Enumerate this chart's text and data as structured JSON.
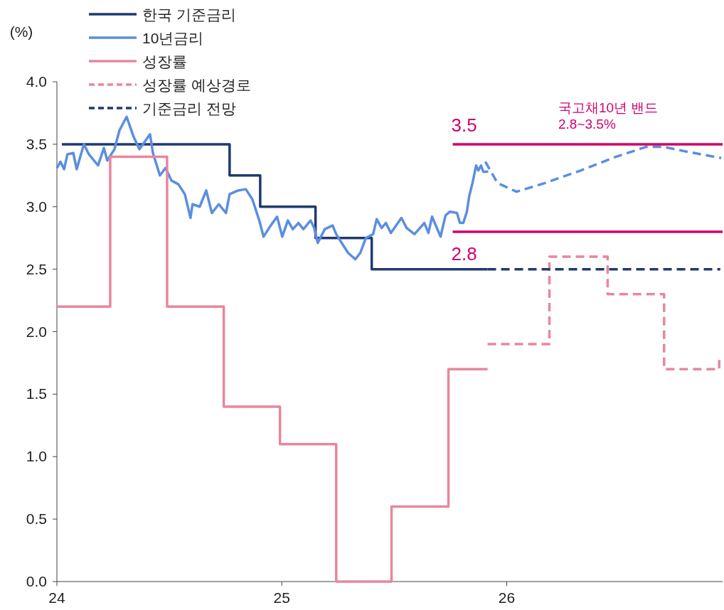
{
  "chart_data": {
    "type": "line",
    "ylabel": "(%)",
    "xlim": [
      24,
      26.96
    ],
    "ylim": [
      0,
      4
    ],
    "xticks": [
      24,
      25,
      26
    ],
    "yticks": [
      {
        "value": 0,
        "label": "0.0"
      },
      {
        "value": 0.5,
        "label": "0.5"
      },
      {
        "value": 1,
        "label": "1.0"
      },
      {
        "value": 1.5,
        "label": "1.5"
      },
      {
        "value": 2,
        "label": "2.0"
      },
      {
        "value": 2.5,
        "label": "2.5"
      },
      {
        "value": 3,
        "label": "3.0"
      },
      {
        "value": 3.5,
        "label": "3.5"
      },
      {
        "value": 4,
        "label": "4.0"
      }
    ],
    "grid": false,
    "legend": "top left",
    "marker": "none",
    "series": [
      {
        "name": "한국 기준금리",
        "type": "step",
        "color": "#1f3a6e",
        "line_style": "solid",
        "x": [
          24.022,
          24.768,
          24.904,
          25.15,
          25.4,
          25.915
        ],
        "values": [
          3.5,
          3.25,
          3.0,
          2.75,
          2.5,
          2.5
        ]
      },
      {
        "name": "10년금리",
        "color": "#5b8ee0",
        "line_style": "solid",
        "x": [
          24,
          24.016,
          24.032,
          24.047,
          24.073,
          24.088,
          24.12,
          24.142,
          24.183,
          24.209,
          24.224,
          24.256,
          24.278,
          24.31,
          24.341,
          24.367,
          24.414,
          24.427,
          24.458,
          24.483,
          24.509,
          24.54,
          24.569,
          24.594,
          24.603,
          24.635,
          24.664,
          24.689,
          24.72,
          24.752,
          24.768,
          24.806,
          24.84,
          24.869,
          24.9,
          24.919,
          24.951,
          24.979,
          25.002,
          25.027,
          25.049,
          25.074,
          25.096,
          25.128,
          25.144,
          25.16,
          25.191,
          25.226,
          25.242,
          25.27,
          25.295,
          25.327,
          25.349,
          25.374,
          25.406,
          25.422,
          25.444,
          25.463,
          25.485,
          25.532,
          25.555,
          25.59,
          25.634,
          25.652,
          25.668,
          25.706,
          25.728,
          25.747,
          25.779,
          25.792,
          25.807,
          25.823,
          25.833,
          25.848,
          25.864,
          25.874,
          25.886,
          25.896,
          25.918
        ],
        "values": [
          3.31,
          3.36,
          3.3,
          3.42,
          3.43,
          3.3,
          3.5,
          3.42,
          3.33,
          3.47,
          3.37,
          3.46,
          3.61,
          3.72,
          3.56,
          3.46,
          3.58,
          3.43,
          3.25,
          3.31,
          3.21,
          3.18,
          3.1,
          2.91,
          3.02,
          3.0,
          3.13,
          2.95,
          3.02,
          2.95,
          3.1,
          3.13,
          3.14,
          3.06,
          2.89,
          2.76,
          2.85,
          2.92,
          2.76,
          2.89,
          2.82,
          2.87,
          2.82,
          2.89,
          2.83,
          2.71,
          2.82,
          2.85,
          2.78,
          2.7,
          2.63,
          2.58,
          2.63,
          2.75,
          2.78,
          2.9,
          2.83,
          2.87,
          2.79,
          2.91,
          2.83,
          2.78,
          2.87,
          2.79,
          2.92,
          2.76,
          2.93,
          2.96,
          2.95,
          2.87,
          2.87,
          2.96,
          3.08,
          3.19,
          3.33,
          3.29,
          3.33,
          3.28,
          3.28
        ]
      },
      {
        "name": "성장률",
        "type": "step",
        "color": "#e8879c",
        "line_style": "solid",
        "x": [
          24,
          24.237,
          24.49,
          24.742,
          24.992,
          25.242,
          25.488,
          25.741,
          25.915
        ],
        "values": [
          2.2,
          3.4,
          2.2,
          1.4,
          1.1,
          0,
          0.6,
          1.7,
          1.7
        ]
      },
      {
        "name": "성장률 예상경로",
        "type": "step",
        "color": "#e8879c",
        "line_style": "dashed",
        "x": [
          25.915,
          26.19,
          26.449,
          26.7,
          26.945
        ],
        "values": [
          1.9,
          2.6,
          2.3,
          1.7,
          1.8
        ]
      },
      {
        "name": "기준금리 전망",
        "type": "step",
        "color": "#1f3a6e",
        "line_style": "dashed",
        "x": [
          25.915,
          26.95
        ],
        "values": [
          2.5,
          2.5
        ]
      },
      {
        "color": "#5b8ee0",
        "line_style": "dashed",
        "x": [
          25.905,
          25.959,
          26.044,
          26.171,
          26.329,
          26.487,
          26.622,
          26.695,
          26.803,
          26.954
        ],
        "values": [
          3.36,
          3.19,
          3.12,
          3.19,
          3.29,
          3.4,
          3.48,
          3.48,
          3.44,
          3.39
        ]
      },
      {
        "color": "#d1006a",
        "line_style": "solid",
        "x": [
          25.76,
          26.96
        ],
        "values": [
          3.5,
          3.5
        ]
      },
      {
        "color": "#d1006a",
        "line_style": "solid",
        "x": [
          25.76,
          26.96
        ],
        "values": [
          2.8,
          2.8
        ]
      }
    ],
    "annotations": [
      {
        "text": "3.5",
        "x": 25.76,
        "y": 3.5
      },
      {
        "text": "2.8",
        "x": 25.76,
        "y": 2.8
      },
      "국고채10년 밴드\n2.8~3.5%"
    ]
  }
}
